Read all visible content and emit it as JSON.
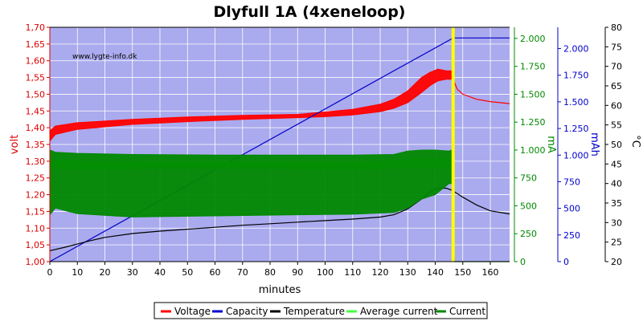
{
  "chart_data": {
    "type": "line",
    "title": "Dlyfull 1A (4xeneloop)",
    "watermark": "www.lygte-info.dk",
    "xlabel": "minutes",
    "xlim": [
      0,
      167
    ],
    "xticks": [
      0,
      10,
      20,
      30,
      40,
      50,
      60,
      70,
      80,
      90,
      100,
      110,
      120,
      130,
      140,
      150,
      160
    ],
    "axes": {
      "volt": {
        "label": "volt",
        "lim": [
          1.0,
          1.7
        ],
        "color": "#dd0000",
        "ticks": [
          "1,00",
          "1,05",
          "1,10",
          "1,15",
          "1,20",
          "1,25",
          "1,30",
          "1,35",
          "1,40",
          "1,45",
          "1,50",
          "1,55",
          "1,60",
          "1,65",
          "1,70"
        ]
      },
      "ma": {
        "label": "mA",
        "lim": [
          0,
          2100
        ],
        "color": "#008800",
        "ticks": [
          "0",
          "250",
          "500",
          "750",
          "1.000",
          "1.250",
          "1.500",
          "1.750",
          "2.000"
        ]
      },
      "mah": {
        "label": "mAh",
        "lim": [
          0,
          2200
        ],
        "color": "#0000cc",
        "ticks": [
          "0",
          "250",
          "500",
          "750",
          "1.000",
          "1.250",
          "1.500",
          "1.750",
          "2.000"
        ]
      },
      "temp": {
        "label": "°C",
        "lim": [
          20,
          80
        ],
        "color": "#000000",
        "ticks": [
          "20",
          "25",
          "30",
          "35",
          "40",
          "45",
          "50",
          "55",
          "60",
          "65",
          "70",
          "75",
          "80"
        ]
      }
    },
    "cutoff_minute": 146.5,
    "series": [
      {
        "name": "Voltage",
        "axis": "volt",
        "color": "#ff0000",
        "style": "band",
        "x": [
          0,
          2,
          10,
          30,
          50,
          70,
          90,
          100,
          110,
          120,
          125,
          130,
          135,
          138,
          141,
          144,
          146
        ],
        "low": [
          1.36,
          1.38,
          1.395,
          1.41,
          1.418,
          1.425,
          1.43,
          1.433,
          1.438,
          1.448,
          1.458,
          1.475,
          1.505,
          1.525,
          1.54,
          1.545,
          1.545
        ],
        "high": [
          1.39,
          1.405,
          1.415,
          1.425,
          1.432,
          1.437,
          1.44,
          1.447,
          1.455,
          1.47,
          1.485,
          1.51,
          1.55,
          1.565,
          1.575,
          1.57,
          1.57
        ]
      },
      {
        "name": "Voltage",
        "axis": "volt",
        "color": "#ff0000",
        "style": "line",
        "x": [
          146.5,
          147,
          148,
          150,
          155,
          160,
          167
        ],
        "y": [
          1.56,
          1.535,
          1.515,
          1.5,
          1.485,
          1.478,
          1.472
        ]
      },
      {
        "name": "Capacity",
        "axis": "mah",
        "color": "#0000cc",
        "style": "line",
        "x": [
          0,
          146.5,
          167
        ],
        "y": [
          0,
          2100,
          2100
        ]
      },
      {
        "name": "Temperature",
        "axis": "temp",
        "color": "#000000",
        "style": "line",
        "x": [
          0,
          5,
          10,
          15,
          20,
          30,
          40,
          50,
          60,
          70,
          80,
          90,
          100,
          110,
          120,
          125,
          130,
          135,
          138,
          141,
          144,
          146,
          150,
          155,
          160,
          167
        ],
        "y": [
          22.8,
          23.6,
          24.5,
          25.4,
          26.2,
          27.2,
          27.8,
          28.3,
          28.8,
          29.3,
          29.7,
          30.1,
          30.5,
          30.9,
          31.4,
          32.0,
          33.5,
          36.0,
          37.8,
          38.8,
          38.8,
          38.3,
          36.5,
          34.5,
          33.0,
          32.2
        ]
      },
      {
        "name": "Average current",
        "axis": "ma",
        "color": "#44ff44",
        "style": "band",
        "x": [
          0,
          2,
          10,
          40,
          80,
          110,
          130,
          140,
          145,
          146
        ],
        "low": [
          800,
          840,
          830,
          835,
          835,
          830,
          840,
          850,
          840,
          830
        ],
        "high": [
          920,
          910,
          900,
          895,
          895,
          890,
          910,
          920,
          910,
          900
        ]
      },
      {
        "name": "Current",
        "axis": "ma",
        "color": "#008800",
        "style": "band",
        "x": [
          0,
          2,
          10,
          30,
          60,
          90,
          110,
          125,
          130,
          135,
          140,
          145,
          146
        ],
        "low": [
          420,
          480,
          430,
          400,
          410,
          420,
          425,
          440,
          480,
          560,
          600,
          700,
          700
        ],
        "high": [
          1000,
          980,
          970,
          960,
          955,
          955,
          955,
          960,
          990,
          1000,
          1000,
          990,
          1000
        ]
      },
      {
        "name": "Current",
        "axis": "ma",
        "color": "#008800",
        "style": "line",
        "x": [
          146.5,
          146.5,
          147,
          167
        ],
        "y": [
          1000,
          170,
          0,
          0
        ]
      }
    ],
    "legend": [
      "Voltage",
      "Capacity",
      "Temperature",
      "Average current",
      "Current"
    ],
    "legend_colors": [
      "#ff0000",
      "#0000cc",
      "#000000",
      "#44ff44",
      "#008800"
    ],
    "legend_position": "bottom-center",
    "grid": true,
    "plot_bg": "#aaaaee",
    "cutoff_color": "#ffff00"
  }
}
